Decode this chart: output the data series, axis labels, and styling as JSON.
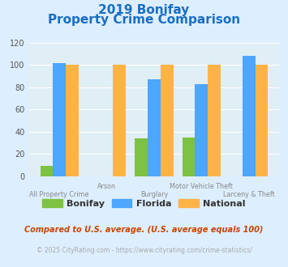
{
  "title_line1": "2019 Bonifay",
  "title_line2": "Property Crime Comparison",
  "categories": [
    "All Property Crime",
    "Arson",
    "Burglary",
    "Motor Vehicle Theft",
    "Larceny & Theft"
  ],
  "bonifay": [
    9,
    0,
    34,
    35,
    0
  ],
  "florida": [
    102,
    0,
    87,
    83,
    108
  ],
  "national": [
    100,
    100,
    100,
    100,
    100
  ],
  "bar_colors": {
    "bonifay": "#7dc242",
    "florida": "#4da6ff",
    "national": "#ffb347"
  },
  "ylim": [
    0,
    120
  ],
  "yticks": [
    0,
    20,
    40,
    60,
    80,
    100,
    120
  ],
  "background_color": "#ddeeff",
  "plot_bg_color": "#e0eef5",
  "title_color": "#1a6ec2",
  "footnote1": "Compared to U.S. average. (U.S. average equals 100)",
  "footnote2": "© 2025 CityRating.com - https://www.cityrating.com/crime-statistics/",
  "footnote1_color": "#cc4400",
  "footnote2_color": "#aaaaaa",
  "label_color": "#888888",
  "tick_color": "#555555"
}
